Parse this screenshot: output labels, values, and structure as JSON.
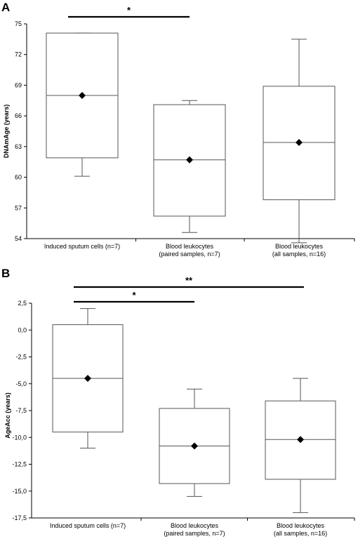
{
  "chart_data": [
    {
      "panel": "A",
      "type": "box",
      "ylabel": "DNAmAge (years)",
      "ylim": [
        54,
        75
      ],
      "yticks": [
        "54",
        "57",
        "60",
        "63",
        "66",
        "69",
        "72",
        "75"
      ],
      "ytick_values": [
        54,
        57,
        60,
        63,
        66,
        69,
        72,
        75
      ],
      "categories": [
        [
          "Induced sputum cells (n=7)"
        ],
        [
          "Blood leukocytes",
          "(paired samples, n=7)"
        ],
        [
          "Blood leukocytes",
          "(all samples, n=16)"
        ]
      ],
      "boxes": [
        {
          "whisker_low": 60.1,
          "q1": 61.9,
          "median": 68.0,
          "q3": 74.1,
          "whisker_high": 74.1,
          "mean": 68.0
        },
        {
          "whisker_low": 54.6,
          "q1": 56.2,
          "median": 61.7,
          "q3": 67.1,
          "whisker_high": 67.5,
          "mean": 61.7
        },
        {
          "whisker_low": 53.6,
          "q1": 57.8,
          "median": 63.4,
          "q3": 68.9,
          "whisker_high": 73.5,
          "mean": 63.4
        }
      ],
      "significance": [
        {
          "from": 0,
          "to": 1,
          "label": "*"
        }
      ]
    },
    {
      "panel": "B",
      "type": "box",
      "ylabel": "AgeAcc (years)",
      "ylim": [
        -17.5,
        2.5
      ],
      "yticks": [
        "2,5",
        "0,0",
        "-2,5",
        "-5,0",
        "-7,5",
        "-10,0",
        "-12,5",
        "-15,0",
        "-17,5"
      ],
      "ytick_values": [
        2.5,
        0,
        -2.5,
        -5,
        -7.5,
        -10,
        -12.5,
        -15,
        -17.5
      ],
      "categories": [
        [
          "Induced sputum cells (n=7)"
        ],
        [
          "Blood leukocytes",
          "(paired samples, n=7)"
        ],
        [
          "Blood leukocytes",
          "(all samples, n=16)"
        ]
      ],
      "boxes": [
        {
          "whisker_low": -11.0,
          "q1": -9.5,
          "median": -4.5,
          "q3": 0.5,
          "whisker_high": 2.0,
          "mean": -4.5
        },
        {
          "whisker_low": -15.5,
          "q1": -14.3,
          "median": -10.8,
          "q3": -7.3,
          "whisker_high": -5.5,
          "mean": -10.8
        },
        {
          "whisker_low": -17.0,
          "q1": -13.9,
          "median": -10.2,
          "q3": -6.6,
          "whisker_high": -4.5,
          "mean": -10.2
        }
      ],
      "significance": [
        {
          "from": 0,
          "to": 1,
          "label": "*"
        },
        {
          "from": 0,
          "to": 2,
          "label": "**"
        }
      ]
    }
  ]
}
